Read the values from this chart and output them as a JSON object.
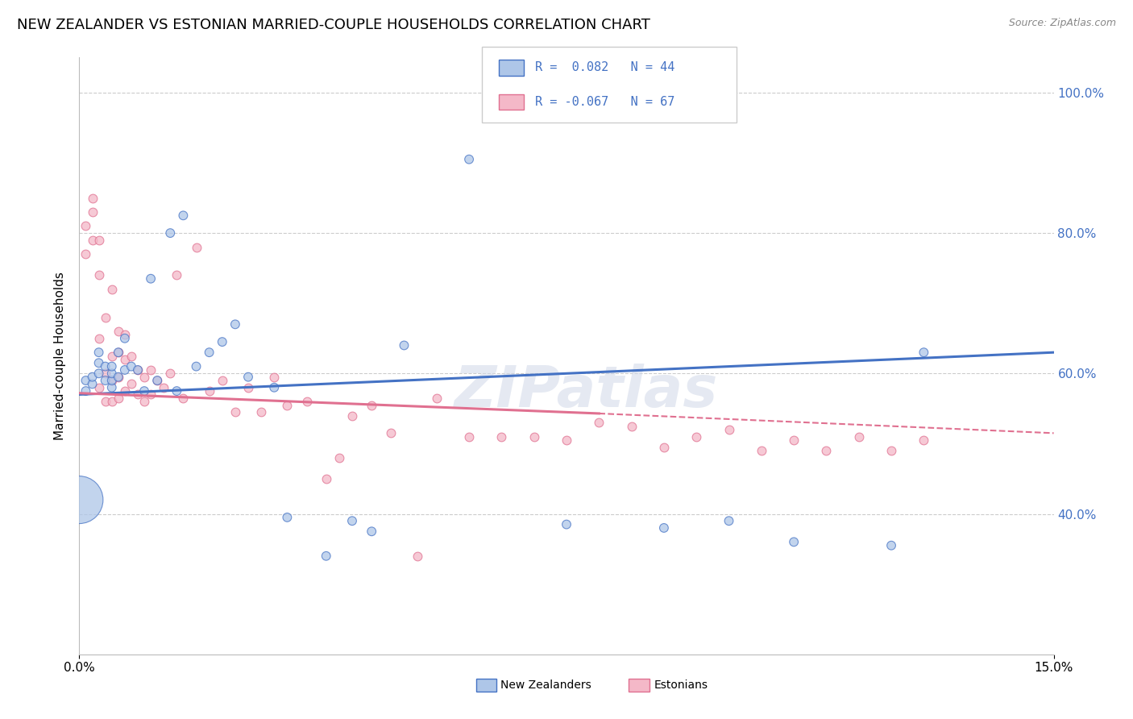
{
  "title": "NEW ZEALANDER VS ESTONIAN MARRIED-COUPLE HOUSEHOLDS CORRELATION CHART",
  "source": "Source: ZipAtlas.com",
  "ylabel": "Married-couple Households",
  "xmin": 0.0,
  "xmax": 0.15,
  "ymin": 0.2,
  "ymax": 1.05,
  "yticks": [
    0.4,
    0.6,
    0.8,
    1.0
  ],
  "ytick_labels": [
    "40.0%",
    "60.0%",
    "80.0%",
    "100.0%"
  ],
  "xticks": [
    0.0,
    0.15
  ],
  "xtick_labels": [
    "0.0%",
    "15.0%"
  ],
  "nz_color": "#aec6e8",
  "est_color": "#f4b8c8",
  "nz_line_color": "#4472c4",
  "est_line_color": "#e07090",
  "nz_scatter_x": [
    0.001,
    0.001,
    0.002,
    0.002,
    0.003,
    0.003,
    0.003,
    0.004,
    0.004,
    0.005,
    0.005,
    0.005,
    0.005,
    0.006,
    0.006,
    0.007,
    0.007,
    0.008,
    0.009,
    0.01,
    0.011,
    0.012,
    0.014,
    0.015,
    0.016,
    0.018,
    0.02,
    0.022,
    0.024,
    0.026,
    0.03,
    0.032,
    0.038,
    0.042,
    0.045,
    0.05,
    0.06,
    0.075,
    0.09,
    0.1,
    0.11,
    0.125,
    0.13,
    0.0
  ],
  "nz_scatter_y": [
    0.575,
    0.59,
    0.585,
    0.595,
    0.6,
    0.615,
    0.63,
    0.59,
    0.61,
    0.58,
    0.59,
    0.6,
    0.61,
    0.595,
    0.63,
    0.605,
    0.65,
    0.61,
    0.605,
    0.575,
    0.735,
    0.59,
    0.8,
    0.575,
    0.825,
    0.61,
    0.63,
    0.645,
    0.67,
    0.595,
    0.58,
    0.395,
    0.34,
    0.39,
    0.375,
    0.64,
    0.905,
    0.385,
    0.38,
    0.39,
    0.36,
    0.355,
    0.63,
    0.42
  ],
  "nz_scatter_size": [
    60,
    60,
    60,
    60,
    60,
    60,
    60,
    60,
    60,
    60,
    60,
    60,
    60,
    60,
    60,
    60,
    60,
    60,
    60,
    60,
    60,
    60,
    60,
    60,
    60,
    60,
    60,
    60,
    60,
    60,
    60,
    60,
    60,
    60,
    60,
    60,
    60,
    60,
    60,
    60,
    60,
    60,
    60,
    1800
  ],
  "est_scatter_x": [
    0.001,
    0.001,
    0.002,
    0.002,
    0.002,
    0.003,
    0.003,
    0.003,
    0.003,
    0.004,
    0.004,
    0.004,
    0.005,
    0.005,
    0.005,
    0.005,
    0.006,
    0.006,
    0.006,
    0.006,
    0.007,
    0.007,
    0.007,
    0.008,
    0.008,
    0.009,
    0.009,
    0.01,
    0.01,
    0.011,
    0.011,
    0.012,
    0.013,
    0.014,
    0.015,
    0.016,
    0.018,
    0.02,
    0.022,
    0.024,
    0.026,
    0.028,
    0.03,
    0.032,
    0.035,
    0.038,
    0.04,
    0.042,
    0.045,
    0.048,
    0.052,
    0.055,
    0.06,
    0.065,
    0.07,
    0.075,
    0.08,
    0.085,
    0.09,
    0.095,
    0.1,
    0.105,
    0.11,
    0.115,
    0.12,
    0.125,
    0.13
  ],
  "est_scatter_y": [
    0.77,
    0.81,
    0.79,
    0.83,
    0.85,
    0.58,
    0.65,
    0.74,
    0.79,
    0.56,
    0.6,
    0.68,
    0.56,
    0.59,
    0.625,
    0.72,
    0.565,
    0.595,
    0.63,
    0.66,
    0.575,
    0.62,
    0.655,
    0.585,
    0.625,
    0.57,
    0.605,
    0.56,
    0.595,
    0.57,
    0.605,
    0.59,
    0.58,
    0.6,
    0.74,
    0.565,
    0.78,
    0.575,
    0.59,
    0.545,
    0.58,
    0.545,
    0.595,
    0.555,
    0.56,
    0.45,
    0.48,
    0.54,
    0.555,
    0.515,
    0.34,
    0.565,
    0.51,
    0.51,
    0.51,
    0.505,
    0.53,
    0.525,
    0.495,
    0.51,
    0.52,
    0.49,
    0.505,
    0.49,
    0.51,
    0.49,
    0.505
  ],
  "nz_line_x0": 0.0,
  "nz_line_x1": 0.15,
  "nz_line_y0": 0.57,
  "nz_line_y1": 0.63,
  "est_line_x0": 0.0,
  "est_line_x1": 0.08,
  "est_line_x1_dash": 0.15,
  "est_line_y0": 0.572,
  "est_line_y1": 0.543,
  "est_line_y1_dash": 0.515,
  "watermark": "ZIPatlas",
  "background_color": "#ffffff",
  "grid_color": "#cccccc"
}
